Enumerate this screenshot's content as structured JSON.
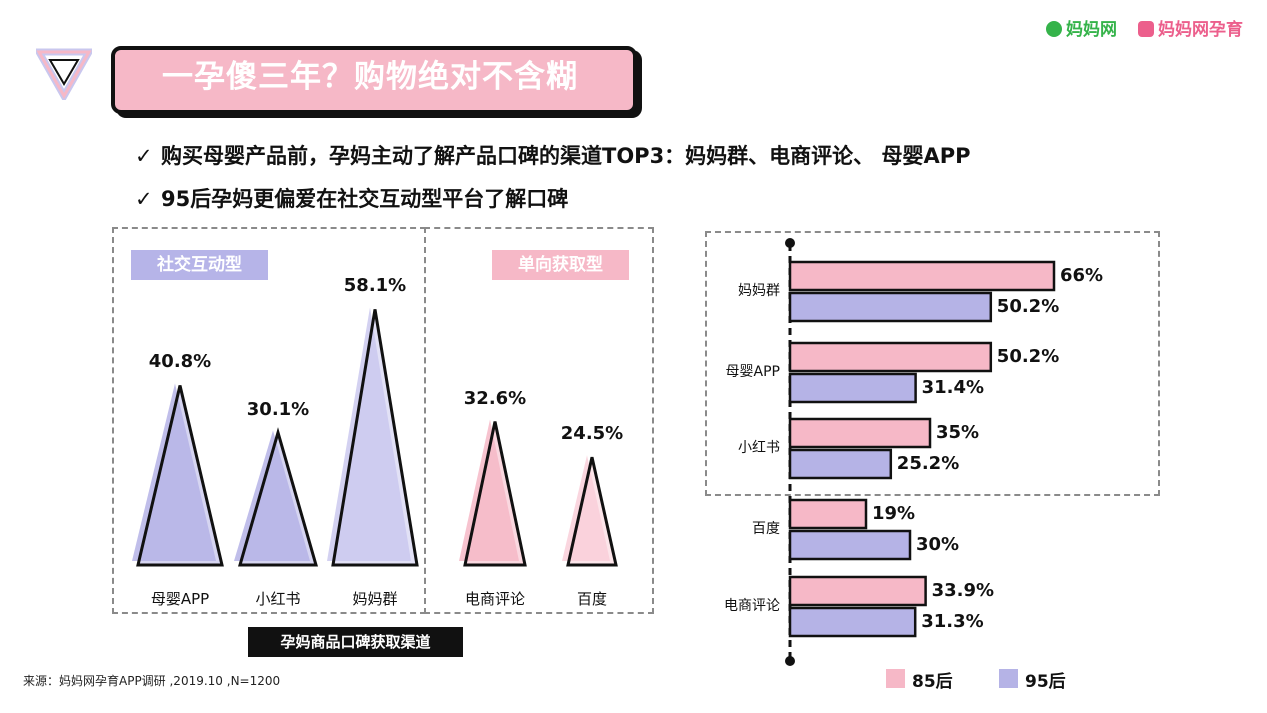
{
  "header": {
    "title": "一孕傻三年？购物绝对不含糊",
    "logo_text_1": "妈妈网",
    "logo_text_2": "妈妈网孕育",
    "bullets": [
      "购买母婴产品前，孕妈主动了解产品口碑的渠道TOP3：妈妈群、电商评论、 母婴APP",
      "95后孕妈更偏爱在社交互动型平台了解口碑"
    ],
    "check_mark": "✓"
  },
  "colors": {
    "pink": "#f6b8c7",
    "purple": "#b5b3e6",
    "light_purple": "#cbc9ef",
    "light_pink": "#f9cfd9",
    "label_purple": "#b6b4e8",
    "label_pink": "#f6b8c7"
  },
  "footer": {
    "caption": "孕妈商品口碑获取渠道",
    "source": "来源：妈妈网孕育APP调研  ,2019.10 ,N=1200"
  },
  "chart_data": [
    {
      "type": "bar",
      "title": "",
      "groups": [
        {
          "label": "社交互动型",
          "categories": [
            "母婴APP",
            "小红书",
            "妈妈群"
          ],
          "values": [
            40.8,
            30.1,
            58.1
          ],
          "value_labels": [
            "40.8%",
            "30.1%",
            "58.1%"
          ]
        },
        {
          "label": "单向获取型",
          "categories": [
            "电商评论",
            "百度"
          ],
          "values": [
            32.6,
            24.5
          ],
          "value_labels": [
            "32.6%",
            "24.5%"
          ]
        }
      ],
      "categories": [
        "母婴APP",
        "小红书",
        "妈妈群",
        "电商评论",
        "百度"
      ],
      "values": [
        40.8,
        30.1,
        58.1,
        32.6,
        24.5
      ],
      "unit": "%"
    },
    {
      "type": "bar",
      "orientation": "horizontal",
      "categories": [
        "妈妈群",
        "母婴APP",
        "小红书",
        "百度",
        "电商评论"
      ],
      "series": [
        {
          "name": "85后",
          "values": [
            66,
            50.2,
            35,
            19,
            33.9
          ],
          "value_labels": [
            "66%",
            "50.2%",
            "35%",
            "19%",
            "33.9%"
          ],
          "color": "#f6b8c7"
        },
        {
          "name": "95后",
          "values": [
            50.2,
            31.4,
            25.2,
            30,
            31.3
          ],
          "value_labels": [
            "50.2%",
            "31.4%",
            "25.2%",
            "30%",
            "31.3%"
          ],
          "color": "#b5b3e6"
        }
      ],
      "unit": "%",
      "legend": "bottom-right"
    }
  ]
}
